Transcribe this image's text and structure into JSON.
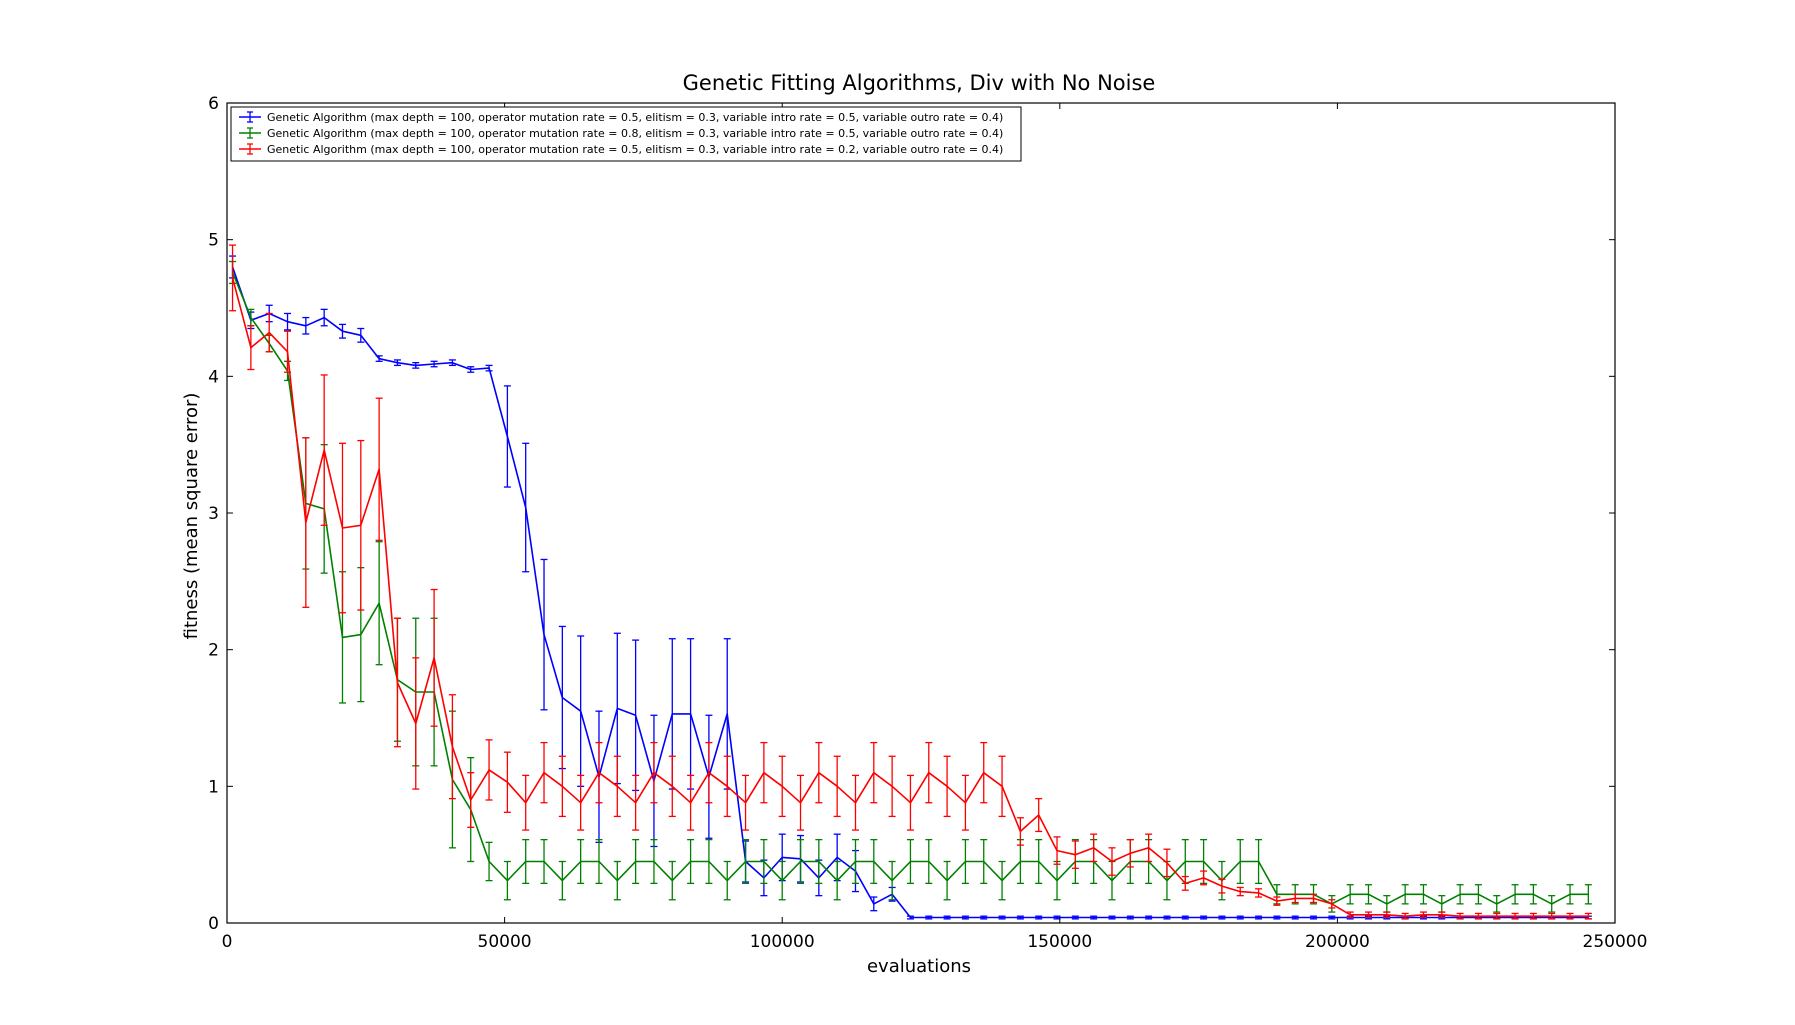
{
  "chart_data": {
    "type": "line",
    "title": "Genetic Fitting Algorithms, Div with No Noise",
    "xlabel": "evaluations",
    "ylabel": "fitness (mean square error)",
    "xlim": [
      0,
      250000
    ],
    "ylim": [
      0,
      6
    ],
    "xticks": [
      0,
      50000,
      100000,
      150000,
      200000,
      250000
    ],
    "yticks": [
      0,
      1,
      2,
      3,
      4,
      5,
      6
    ],
    "grid": false,
    "legend_position": "upper-left",
    "error_bars": true,
    "x": [
      1000,
      4300,
      7600,
      10900,
      14200,
      17500,
      20800,
      24100,
      27400,
      30700,
      34000,
      37300,
      40600,
      43900,
      47200,
      50500,
      53800,
      57100,
      60400,
      63700,
      67000,
      70300,
      73600,
      76900,
      80200,
      83500,
      86800,
      90100,
      93400,
      96700,
      100000,
      103300,
      106600,
      109900,
      113200,
      116500,
      119800,
      123100,
      126400,
      129700,
      133000,
      136300,
      139600,
      142900,
      146200,
      149500,
      152800,
      156100,
      159400,
      162700,
      166000,
      169300,
      172600,
      175900,
      179200,
      182500,
      185800,
      189100,
      192400,
      195700,
      199000,
      202300,
      205600,
      208900,
      212200,
      215500,
      218800,
      222100,
      225400,
      228700,
      232000,
      235300,
      238600,
      241900,
      245200
    ],
    "series": [
      {
        "name": "Genetic Algorithm (max depth = 100, operator mutation rate = 0.5, elitism = 0.3, variable intro rate = 0.5, variable outro rate = 0.4)",
        "color": "#0000ff",
        "values": [
          4.8,
          4.41,
          4.46,
          4.4,
          4.37,
          4.43,
          4.33,
          4.3,
          4.13,
          4.1,
          4.08,
          4.09,
          4.1,
          4.05,
          4.06,
          3.56,
          3.04,
          2.11,
          1.65,
          1.55,
          1.07,
          1.57,
          1.52,
          1.04,
          1.53,
          1.53,
          1.07,
          1.53,
          0.45,
          0.33,
          0.48,
          0.47,
          0.33,
          0.48,
          0.38,
          0.14,
          0.21,
          0.04,
          0.04,
          0.04,
          0.04,
          0.04,
          0.04,
          0.04,
          0.04,
          0.04,
          0.04,
          0.04,
          0.04,
          0.04,
          0.04,
          0.04,
          0.04,
          0.04,
          0.04,
          0.04,
          0.04,
          0.04,
          0.04,
          0.04,
          0.04,
          0.04,
          0.04,
          0.04,
          0.04,
          0.04,
          0.04,
          0.04,
          0.04,
          0.04,
          0.04,
          0.04,
          0.04,
          0.04,
          0.04
        ],
        "errors": [
          0.08,
          0.06,
          0.06,
          0.06,
          0.06,
          0.06,
          0.05,
          0.05,
          0.02,
          0.02,
          0.02,
          0.02,
          0.02,
          0.02,
          0.02,
          0.37,
          0.47,
          0.55,
          0.52,
          0.55,
          0.48,
          0.55,
          0.55,
          0.48,
          0.55,
          0.55,
          0.45,
          0.55,
          0.15,
          0.13,
          0.17,
          0.17,
          0.13,
          0.17,
          0.15,
          0.05,
          0.05,
          0.01,
          0.01,
          0.01,
          0.01,
          0.01,
          0.01,
          0.01,
          0.01,
          0.01,
          0.01,
          0.01,
          0.01,
          0.01,
          0.01,
          0.01,
          0.01,
          0.01,
          0.01,
          0.01,
          0.01,
          0.01,
          0.01,
          0.01,
          0.01,
          0.01,
          0.01,
          0.01,
          0.01,
          0.01,
          0.01,
          0.01,
          0.01,
          0.01,
          0.01,
          0.01,
          0.01,
          0.01,
          0.01
        ]
      },
      {
        "name": "Genetic Algorithm (max depth = 100, operator mutation rate = 0.8, elitism = 0.3, variable intro rate = 0.5, variable outro rate = 0.4)",
        "color": "#008000",
        "values": [
          4.76,
          4.43,
          4.24,
          4.04,
          3.07,
          3.03,
          2.09,
          2.11,
          2.34,
          1.78,
          1.69,
          1.69,
          1.05,
          0.83,
          0.45,
          0.31,
          0.45,
          0.45,
          0.31,
          0.45,
          0.45,
          0.31,
          0.45,
          0.45,
          0.31,
          0.45,
          0.45,
          0.31,
          0.45,
          0.45,
          0.31,
          0.45,
          0.45,
          0.31,
          0.45,
          0.45,
          0.31,
          0.45,
          0.45,
          0.31,
          0.45,
          0.45,
          0.31,
          0.45,
          0.45,
          0.31,
          0.45,
          0.45,
          0.31,
          0.45,
          0.45,
          0.31,
          0.45,
          0.45,
          0.31,
          0.45,
          0.45,
          0.21,
          0.21,
          0.21,
          0.14,
          0.21,
          0.21,
          0.14,
          0.21,
          0.21,
          0.14,
          0.21,
          0.21,
          0.14,
          0.21,
          0.21,
          0.14,
          0.21,
          0.21
        ],
        "errors": [
          0.08,
          0.06,
          0.06,
          0.07,
          0.48,
          0.47,
          0.48,
          0.49,
          0.45,
          0.45,
          0.54,
          0.54,
          0.5,
          0.38,
          0.14,
          0.14,
          0.16,
          0.16,
          0.14,
          0.16,
          0.16,
          0.14,
          0.16,
          0.16,
          0.14,
          0.16,
          0.16,
          0.14,
          0.16,
          0.16,
          0.14,
          0.16,
          0.16,
          0.14,
          0.16,
          0.16,
          0.14,
          0.16,
          0.16,
          0.14,
          0.16,
          0.16,
          0.14,
          0.16,
          0.16,
          0.14,
          0.16,
          0.16,
          0.14,
          0.16,
          0.16,
          0.14,
          0.16,
          0.16,
          0.14,
          0.16,
          0.16,
          0.07,
          0.07,
          0.07,
          0.06,
          0.07,
          0.07,
          0.06,
          0.07,
          0.07,
          0.06,
          0.07,
          0.07,
          0.06,
          0.07,
          0.07,
          0.06,
          0.07,
          0.07
        ]
      },
      {
        "name": "Genetic Algorithm (max depth = 100, operator mutation rate = 0.5, elitism = 0.3, variable intro rate = 0.2, variable outro rate = 0.4)",
        "color": "#ff0000",
        "values": [
          4.72,
          4.21,
          4.32,
          4.18,
          2.93,
          3.46,
          2.89,
          2.91,
          3.32,
          1.76,
          1.46,
          1.94,
          1.29,
          0.9,
          1.12,
          1.03,
          0.88,
          1.1,
          1.0,
          0.88,
          1.1,
          1.0,
          0.88,
          1.1,
          1.0,
          0.88,
          1.1,
          1.0,
          0.88,
          1.1,
          1.0,
          0.88,
          1.1,
          1.0,
          0.88,
          1.1,
          1.0,
          0.88,
          1.1,
          1.0,
          0.88,
          1.1,
          1.0,
          0.67,
          0.79,
          0.53,
          0.5,
          0.55,
          0.45,
          0.51,
          0.55,
          0.44,
          0.29,
          0.33,
          0.27,
          0.23,
          0.22,
          0.16,
          0.18,
          0.18,
          0.14,
          0.06,
          0.06,
          0.06,
          0.05,
          0.06,
          0.06,
          0.05,
          0.05,
          0.05,
          0.05,
          0.05,
          0.05,
          0.05,
          0.05
        ],
        "errors": [
          0.24,
          0.16,
          0.14,
          0.15,
          0.62,
          0.55,
          0.62,
          0.62,
          0.52,
          0.47,
          0.48,
          0.5,
          0.38,
          0.2,
          0.22,
          0.22,
          0.2,
          0.22,
          0.22,
          0.2,
          0.22,
          0.22,
          0.2,
          0.22,
          0.22,
          0.2,
          0.22,
          0.22,
          0.2,
          0.22,
          0.22,
          0.2,
          0.22,
          0.22,
          0.2,
          0.22,
          0.22,
          0.2,
          0.22,
          0.22,
          0.2,
          0.22,
          0.22,
          0.1,
          0.12,
          0.1,
          0.1,
          0.1,
          0.1,
          0.1,
          0.1,
          0.1,
          0.05,
          0.05,
          0.05,
          0.03,
          0.03,
          0.03,
          0.03,
          0.03,
          0.03,
          0.02,
          0.02,
          0.02,
          0.02,
          0.02,
          0.02,
          0.02,
          0.02,
          0.02,
          0.02,
          0.02,
          0.02,
          0.02,
          0.02
        ]
      }
    ]
  }
}
